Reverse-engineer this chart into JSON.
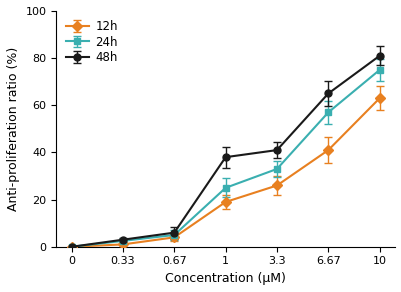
{
  "x_positions": [
    0,
    1,
    2,
    3,
    4,
    5,
    6
  ],
  "x_labels": [
    "0",
    "0.33",
    "0.67",
    "1",
    "3.3",
    "6.67",
    "10"
  ],
  "series": {
    "12h": {
      "y": [
        0,
        1,
        4,
        19,
        26,
        41,
        63
      ],
      "yerr": [
        0.4,
        0.8,
        1.5,
        3.0,
        4.0,
        5.5,
        5.0
      ],
      "color": "#E88020",
      "marker": "D",
      "markersize": 5,
      "label": "12h"
    },
    "24h": {
      "y": [
        0,
        2.5,
        5,
        25,
        33,
        57,
        75
      ],
      "yerr": [
        0.4,
        0.8,
        2.0,
        4.0,
        3.5,
        5.0,
        4.5
      ],
      "color": "#3AAFB0",
      "marker": "s",
      "markersize": 5,
      "label": "24h"
    },
    "48h": {
      "y": [
        0,
        3,
        6,
        38,
        41,
        65,
        81
      ],
      "yerr": [
        0.4,
        0.8,
        2.5,
        4.5,
        3.5,
        5.5,
        4.0
      ],
      "color": "#1a1a1a",
      "marker": "o",
      "markersize": 5,
      "label": "48h"
    }
  },
  "xlabel": "Concentration (μM)",
  "ylabel": "Anti-proliferation ratio (%)",
  "ylim": [
    0,
    100
  ],
  "yticks": [
    0,
    20,
    40,
    60,
    80,
    100
  ],
  "linewidth": 1.5,
  "capsize": 3,
  "legend_loc": "upper left",
  "background_color": "#ffffff",
  "axis_fontsize": 9,
  "tick_fontsize": 8,
  "legend_fontsize": 8.5
}
